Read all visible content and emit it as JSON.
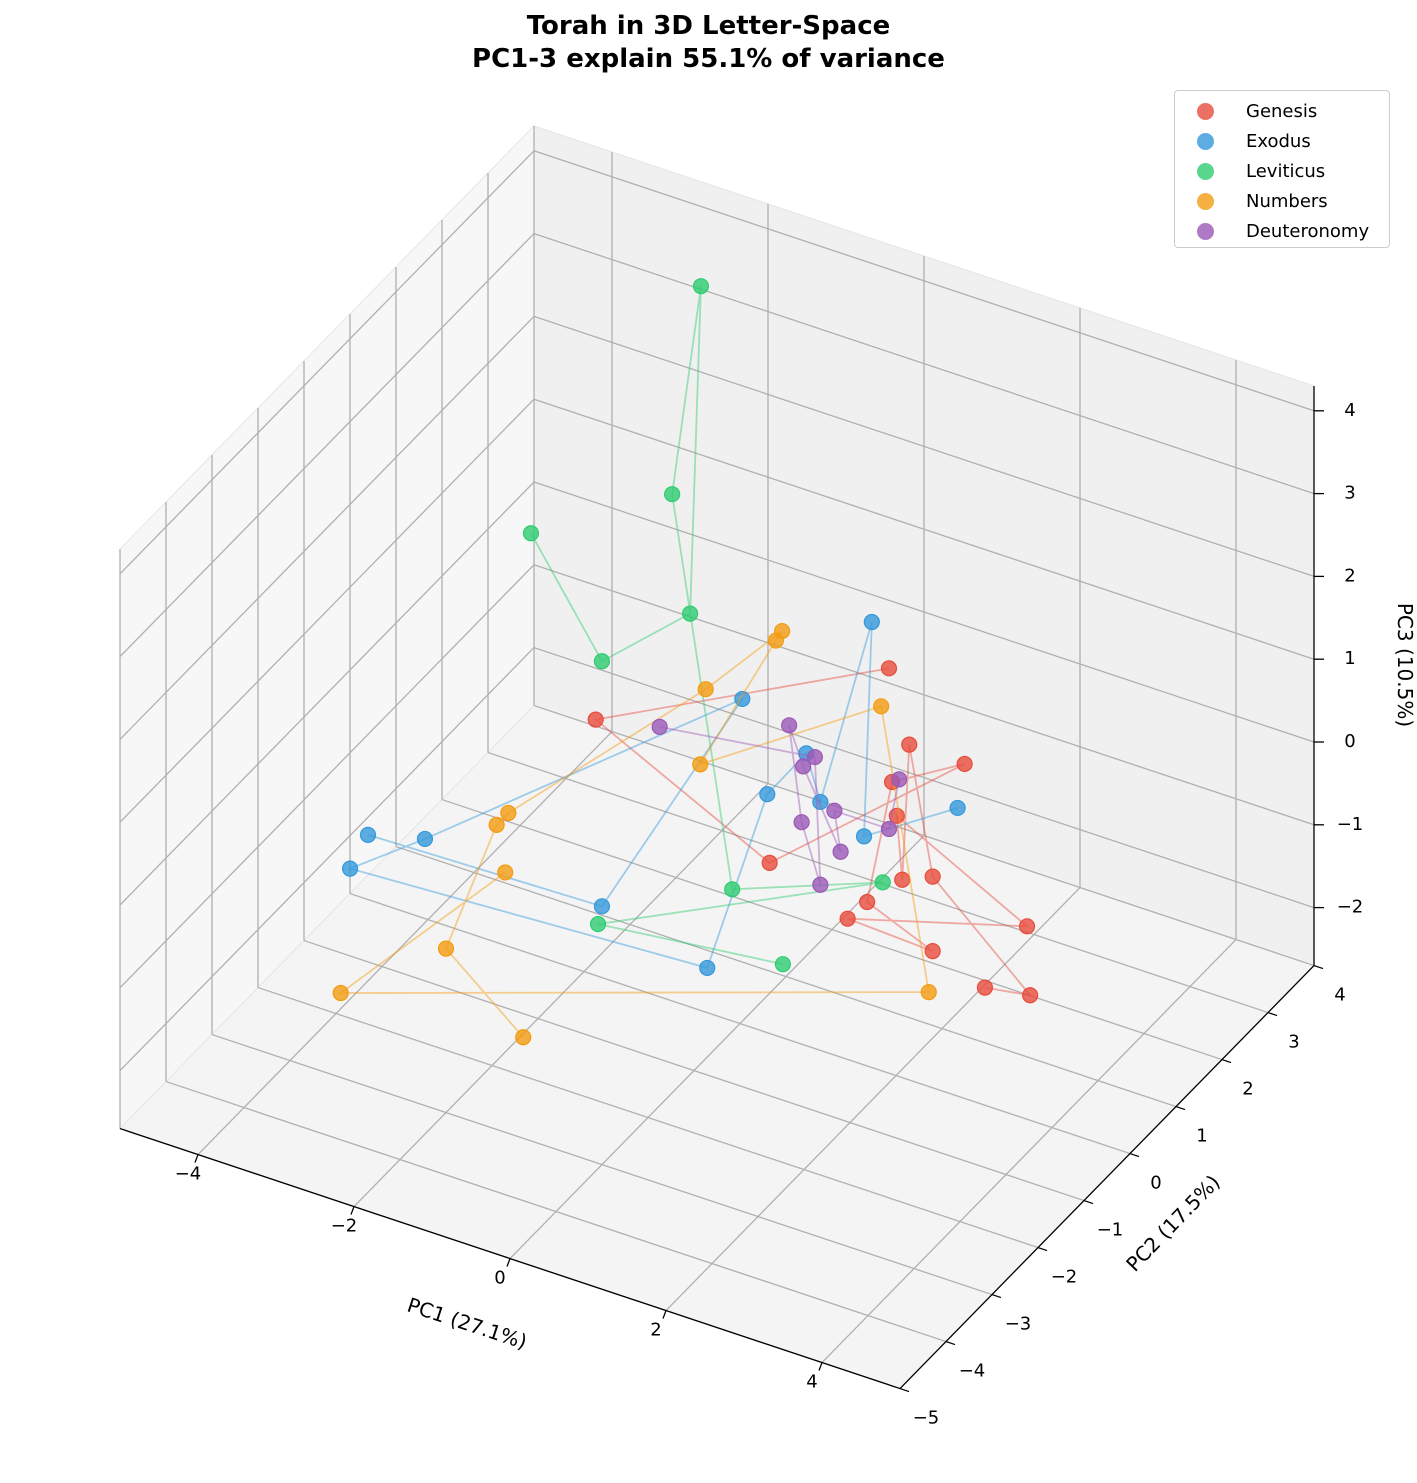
{
  "chart_data": {
    "type": "scatter",
    "projection": "3d",
    "title": "Torah in 3D Letter-Space",
    "subtitle": "PC1-3 explain 55.1% of variance",
    "xlabel": "PC1 (27.1%)",
    "ylabel": "PC2 (17.5%)",
    "zlabel": "PC3 (10.5%)",
    "xlim": [
      -5,
      5
    ],
    "ylim": [
      -5,
      4
    ],
    "zlim": [
      -2.7,
      4.3
    ],
    "xticks": [
      -4,
      -2,
      0,
      2,
      4
    ],
    "yticks": [
      -5,
      -4,
      -3,
      -2,
      -1,
      0,
      1,
      2,
      3,
      4
    ],
    "zticks": [
      -2,
      -1,
      0,
      1,
      2,
      3,
      4
    ],
    "grid": true,
    "legend_position": "top-right",
    "connected_lines": true,
    "series": [
      {
        "name": "Genesis",
        "color": "#e74c3c",
        "points": [
          [
            3.14,
            0,
            -1.28
          ],
          [
            3.72,
            0,
            -1.19
          ],
          [
            2.47,
            0,
            -0.15
          ],
          [
            2.17,
            0,
            1.35
          ],
          [
            2.08,
            0,
            -0.31
          ],
          [
            2.01,
            0,
            0.44
          ],
          [
            3.68,
            0,
            -0.37
          ],
          [
            1.38,
            0,
            -1.0
          ],
          [
            2.47,
            0,
            -1.05
          ],
          [
            1.63,
            0,
            -0.72
          ],
          [
            1.95,
            0,
            0.83
          ],
          [
            2.88,
            0,
            1.34
          ],
          [
            0.38,
            0,
            -0.64
          ],
          [
            -1.85,
            0,
            0.39
          ],
          [
            1.91,
            0,
            2.19
          ]
        ]
      },
      {
        "name": "Exodus",
        "color": "#3498db",
        "points": [
          [
            2.79,
            0,
            0.78
          ],
          [
            1.59,
            0,
            0.06
          ],
          [
            1.69,
            0,
            2.68
          ],
          [
            1.03,
            0,
            0.3
          ],
          [
            0.85,
            0,
            0.83
          ],
          [
            0.35,
            0,
            0.18
          ],
          [
            -0.42,
            0,
            -2.16
          ],
          [
            -3.23,
            -3,
            -0.14
          ],
          [
            -2.27,
            -3,
            0.52
          ],
          [
            0.03,
            0,
            1.23
          ],
          [
            -1.77,
            0,
            -1.84
          ],
          [
            -3.0,
            -3,
            0.34
          ]
        ]
      },
      {
        "name": "Leviticus",
        "color": "#2ecc71",
        "points": [
          [
            -2.68,
            0,
            2.38
          ],
          [
            -1.77,
            0,
            1.12
          ],
          [
            -0.64,
            0,
            2.05
          ],
          [
            -2.27,
            3,
            3.79
          ],
          [
            -0.87,
            0,
            3.42
          ],
          [
            -0.1,
            0,
            -1.11
          ],
          [
            1.83,
            0,
            -0.42
          ],
          [
            -1.82,
            0,
            -2.07
          ],
          [
            0.55,
            0,
            -1.81
          ]
        ]
      },
      {
        "name": "Numbers",
        "color": "#f39c12",
        "points": [
          [
            -1.01,
            -3,
            -1.48
          ],
          [
            -2.0,
            -3,
            -0.72
          ],
          [
            -3.12,
            0,
            -1.28
          ],
          [
            -2.97,
            0,
            -1.09
          ],
          [
            -0.44,
            0,
            1.2
          ],
          [
            0.54,
            0,
            2.21
          ],
          [
            0.46,
            0,
            2.07
          ],
          [
            -0.51,
            0,
            0.27
          ],
          [
            1.81,
            0,
            1.7
          ],
          [
            2.42,
            0,
            -1.56
          ],
          [
            -3.35,
            -3,
            -1.68
          ],
          [
            -3.01,
            0,
            -1.82
          ]
        ]
      },
      {
        "name": "Deuteronomy",
        "color": "#9b59b6",
        "points": [
          [
            -1.03,
            0,
            0.56
          ],
          [
            0.96,
            0,
            0.82
          ],
          [
            1.03,
            0,
            -0.7
          ],
          [
            0.79,
            0,
            -0.02
          ],
          [
            0.63,
            0,
            1.1
          ],
          [
            0.81,
            0,
            0.66
          ],
          [
            1.29,
            0,
            -0.22
          ],
          [
            1.21,
            0,
            0.25
          ],
          [
            1.91,
            0,
            0.25
          ],
          [
            2.04,
            0,
            0.89
          ]
        ]
      }
    ]
  }
}
